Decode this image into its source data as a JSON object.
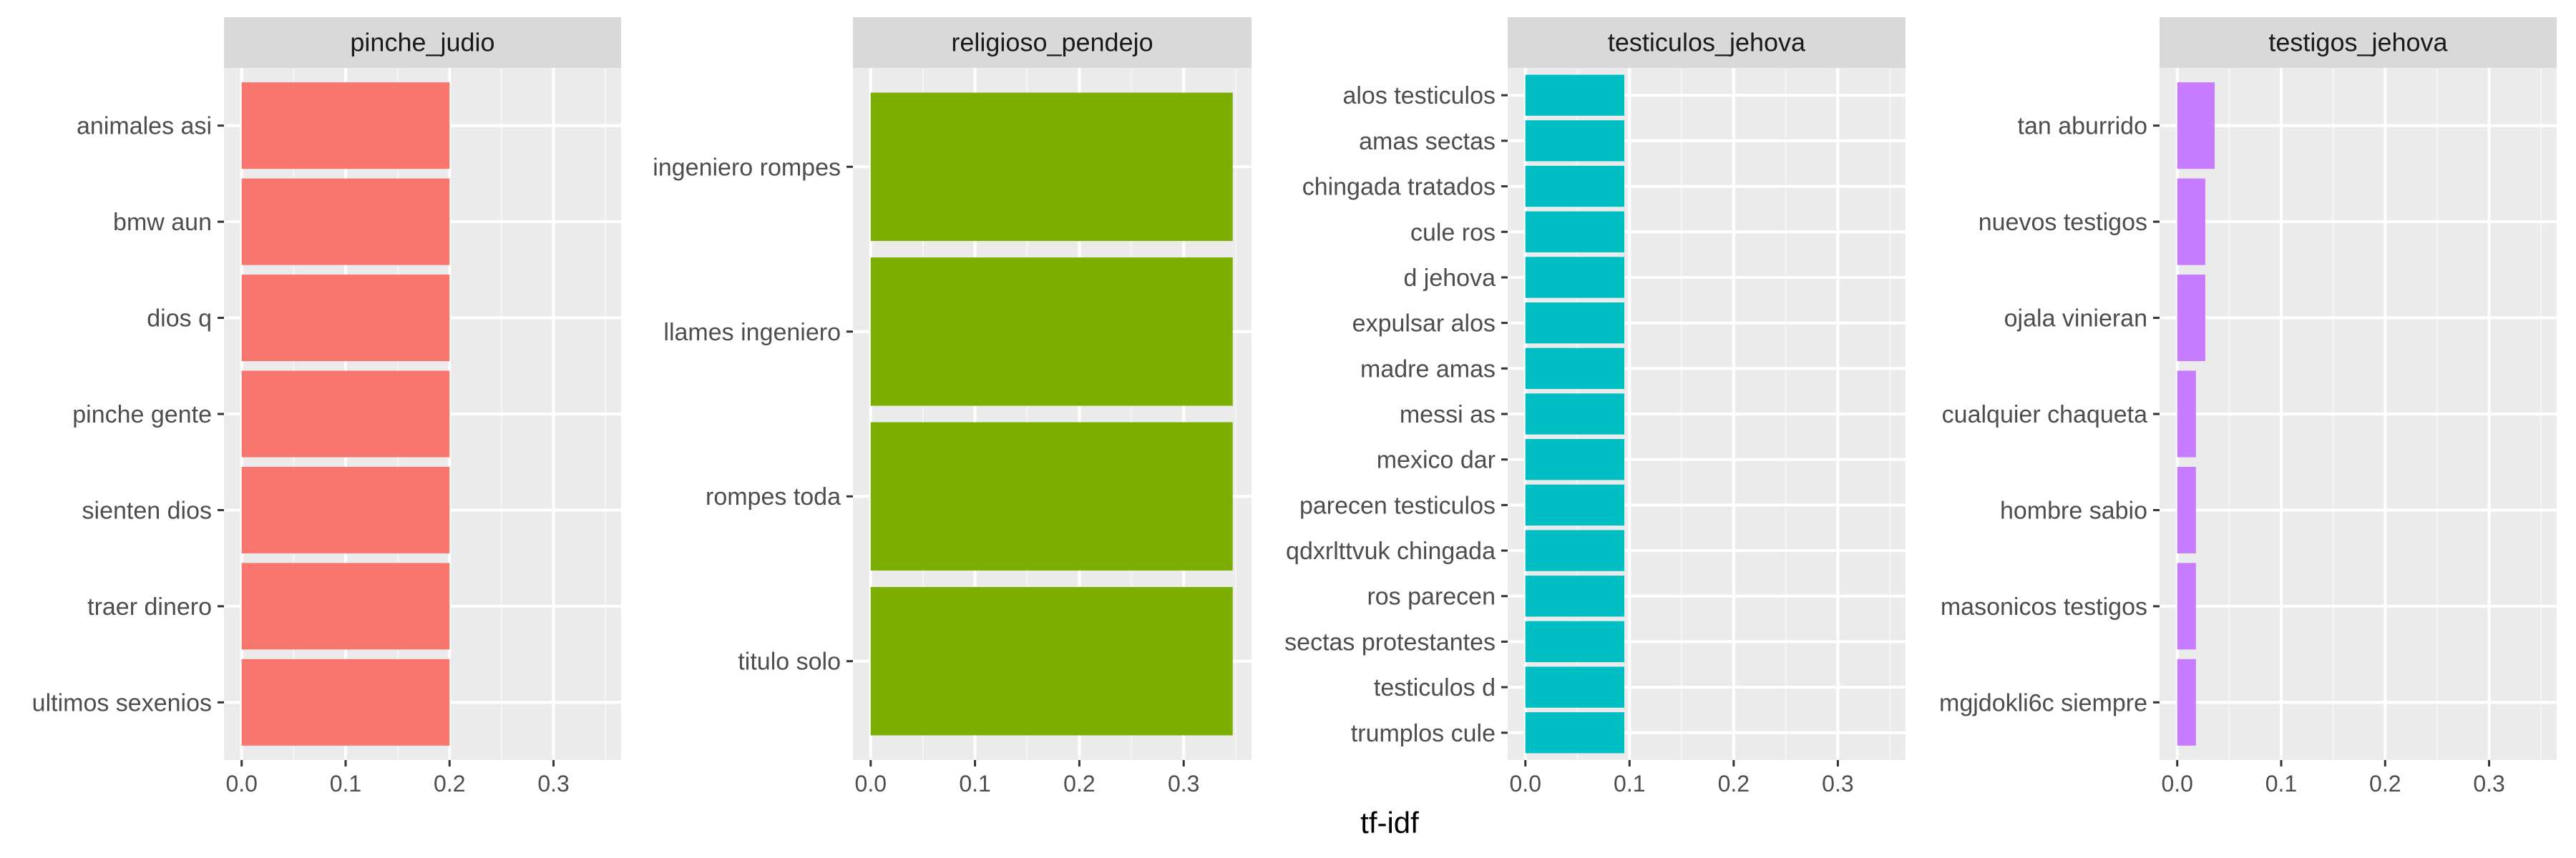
{
  "chart_data": {
    "type": "bar",
    "orientation": "horizontal",
    "layout": "facets-free-y",
    "xlabel": "tf-idf",
    "xlim": [
      -0.017,
      0.365
    ],
    "x_ticks": [
      0.0,
      0.1,
      0.2,
      0.3
    ],
    "x_tick_labels": [
      "0.0",
      "0.1",
      "0.2",
      "0.3"
    ],
    "grid": true,
    "legend": "none",
    "facets": [
      {
        "title": "pinche_judio",
        "color": "#F8766D",
        "categories": [
          "animales asi",
          "bmw aun",
          "dios q",
          "pinche gente",
          "sienten dios",
          "traer dinero",
          "ultimos sexenios"
        ],
        "values": [
          0.2,
          0.2,
          0.2,
          0.2,
          0.2,
          0.2,
          0.2
        ]
      },
      {
        "title": "religioso_pendejo",
        "color": "#7CAE00",
        "categories": [
          "ingeniero rompes",
          "llames ingeniero",
          "rompes toda",
          "titulo solo"
        ],
        "values": [
          0.347,
          0.347,
          0.347,
          0.347
        ]
      },
      {
        "title": "testiculos_jehova",
        "color": "#00BFC4",
        "categories": [
          "alos testiculos",
          "amas sectas",
          "chingada tratados",
          "cule ros",
          "d jehova",
          "expulsar alos",
          "madre amas",
          "messi as",
          "mexico dar",
          "parecen testiculos",
          "qdxrlttvuk chingada",
          "ros parecen",
          "sectas protestantes",
          "testiculos d",
          "trumplos cule"
        ],
        "values": [
          0.095,
          0.095,
          0.095,
          0.095,
          0.095,
          0.095,
          0.095,
          0.095,
          0.095,
          0.095,
          0.095,
          0.095,
          0.095,
          0.095,
          0.095
        ]
      },
      {
        "title": "testigos_jehova",
        "color": "#C77CFF",
        "categories": [
          "tan aburrido",
          "nuevos testigos",
          "ojala vinieran",
          "cualquier chaqueta",
          "hombre sabio",
          "masonicos testigos",
          "mgjdokli6c siempre"
        ],
        "values": [
          0.036,
          0.027,
          0.027,
          0.018,
          0.018,
          0.018,
          0.018
        ]
      }
    ]
  }
}
